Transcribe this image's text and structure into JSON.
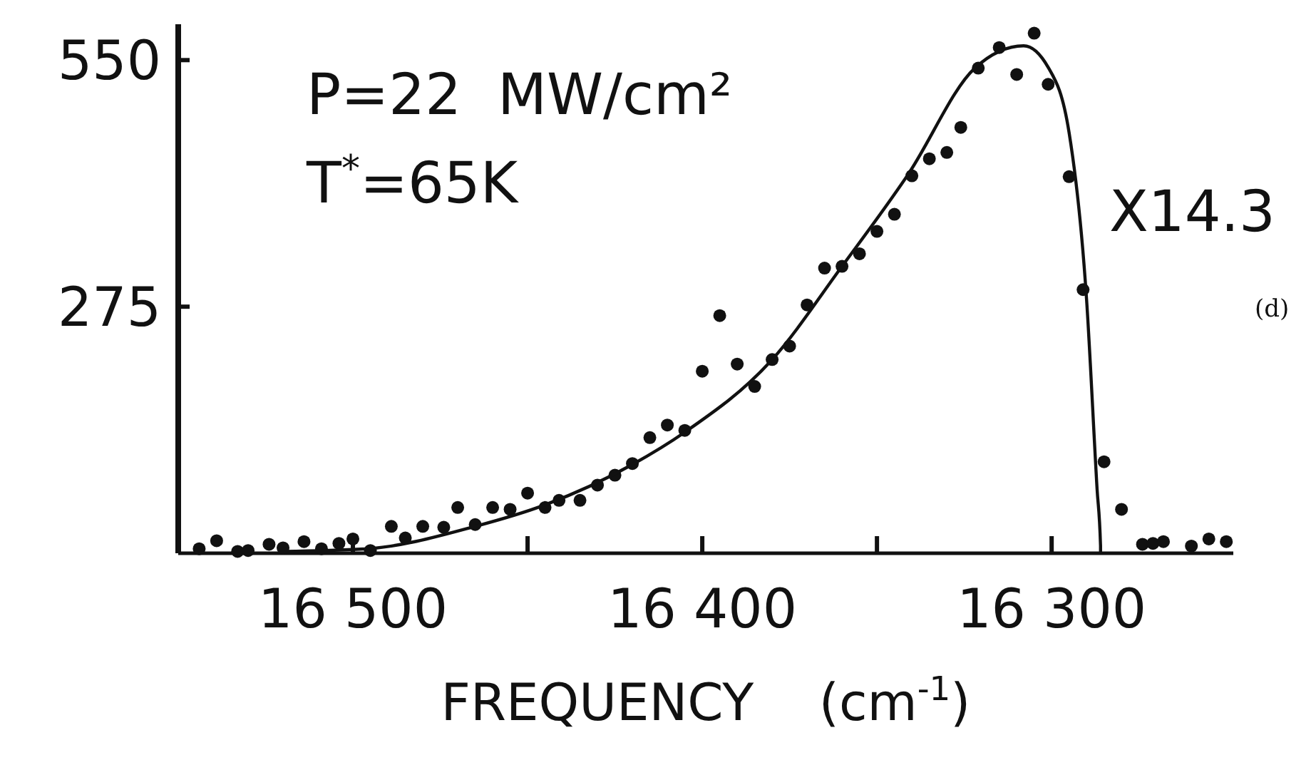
{
  "chart_data": {
    "type": "scatter",
    "xlabel": "FREQUENCY    (cm$^{-1}$)",
    "annotations": [
      "P=22  MW/cm²",
      "T$^{*}$=65K",
      "X14.3",
      "(d)"
    ],
    "xlim": [
      16550,
      16248
    ],
    "xticks": [
      {
        "value": 16500,
        "label": "16 500"
      },
      {
        "value": 16450,
        "label": null
      },
      {
        "value": 16400,
        "label": "16 400"
      },
      {
        "value": 16350,
        "label": null
      },
      {
        "value": 16300,
        "label": "16 300"
      }
    ],
    "ylim": [
      0,
      590
    ],
    "yticks": [
      275,
      550
    ],
    "marker": "circle",
    "grid": false,
    "series": [
      {
        "color": "#111111",
        "x": [
          16544,
          16539,
          16533,
          16530,
          16524,
          16520,
          16514,
          16509,
          16504,
          16500,
          16495,
          16489,
          16485,
          16480,
          16474,
          16470,
          16465,
          16460,
          16455,
          16450,
          16445,
          16441,
          16435,
          16430,
          16425,
          16420,
          16415,
          16410,
          16405,
          16400,
          16395,
          16390,
          16385,
          16380,
          16375,
          16370,
          16365,
          16360,
          16355,
          16350,
          16345,
          16340,
          16335,
          16330,
          16326,
          16321,
          16315,
          16310,
          16305,
          16301,
          16295,
          16291,
          16285,
          16280,
          16274,
          16271,
          16268,
          16260,
          16255,
          16250
        ],
        "values": [
          5,
          14,
          2,
          3,
          10,
          6,
          13,
          5,
          11,
          16,
          3,
          30,
          17,
          30,
          29,
          51,
          32,
          51,
          49,
          67,
          51,
          59,
          59,
          76,
          87,
          100,
          129,
          143,
          137,
          203,
          265,
          211,
          186,
          216,
          231,
          277,
          318,
          320,
          334,
          359,
          378,
          421,
          440,
          447,
          475,
          541,
          564,
          534,
          580,
          523,
          420,
          294,
          102,
          49,
          10,
          11,
          13,
          8,
          16,
          13
        ]
      },
      {
        "type": "line",
        "color": "#111111",
        "marker": "none",
        "line_style": "solid",
        "x": [
          16520,
          16496,
          16465,
          16445,
          16420,
          16405,
          16380,
          16360,
          16341,
          16322,
          16308,
          16301,
          16295,
          16290,
          16287,
          16286,
          16286
        ],
        "values": [
          2,
          5,
          30,
          54,
          99,
          135,
          216,
          320,
          423,
          541,
          566,
          542,
          469,
          283,
          72,
          8,
          0
        ]
      }
    ]
  }
}
